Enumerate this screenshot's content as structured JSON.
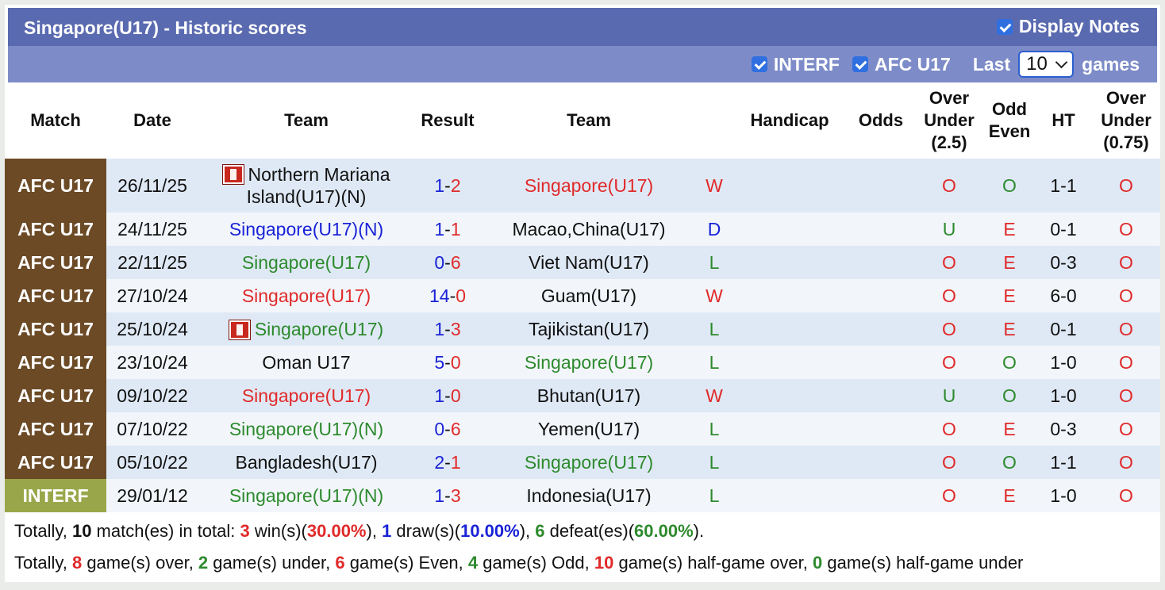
{
  "header": {
    "title": "Singapore(U17) - Historic scores",
    "display_notes_label": "Display Notes",
    "display_notes_checked": true
  },
  "filters": {
    "interf_label": "INTERF",
    "afc_label": "AFC U17",
    "last_label": "Last",
    "last_value": "10",
    "games_label": "games"
  },
  "columns": [
    "Match",
    "Date",
    "Team",
    "Result",
    "Team",
    "",
    "Handicap",
    "Odds",
    "Over\nUnder\n(2.5)",
    "Odd\nEven",
    "HT",
    "Over\nUnder\n(0.75)"
  ],
  "rows": [
    {
      "match": "AFC U17",
      "date": "26/11/25",
      "home": "Northern Mariana Island(U17)(N)",
      "home_color": "black",
      "home_flag": true,
      "score_l": "1",
      "score_r": "2",
      "away": "Singapore(U17)",
      "away_color": "red",
      "wld": "W",
      "wld_color": "red",
      "handicap": "",
      "odds": "",
      "ou": "O",
      "oe": "O",
      "ht": "1-1",
      "ou2": "O"
    },
    {
      "match": "AFC U17",
      "date": "24/11/25",
      "home": "Singapore(U17)(N)",
      "home_color": "blue",
      "home_flag": false,
      "score_l": "1",
      "score_r": "1",
      "away": "Macao,China(U17)",
      "away_color": "black",
      "wld": "D",
      "wld_color": "blue",
      "handicap": "",
      "odds": "",
      "ou": "U",
      "oe": "E",
      "ht": "0-1",
      "ou2": "O"
    },
    {
      "match": "AFC U17",
      "date": "22/11/25",
      "home": "Singapore(U17)",
      "home_color": "green",
      "home_flag": false,
      "score_l": "0",
      "score_r": "6",
      "away": "Viet Nam(U17)",
      "away_color": "black",
      "wld": "L",
      "wld_color": "green",
      "handicap": "",
      "odds": "",
      "ou": "O",
      "oe": "E",
      "ht": "0-3",
      "ou2": "O"
    },
    {
      "match": "AFC U17",
      "date": "27/10/24",
      "home": "Singapore(U17)",
      "home_color": "red",
      "home_flag": false,
      "score_l": "14",
      "score_r": "0",
      "away": "Guam(U17)",
      "away_color": "black",
      "wld": "W",
      "wld_color": "red",
      "handicap": "",
      "odds": "",
      "ou": "O",
      "oe": "E",
      "ht": "6-0",
      "ou2": "O"
    },
    {
      "match": "AFC U17",
      "date": "25/10/24",
      "home": "Singapore(U17)",
      "home_color": "green",
      "home_flag": true,
      "score_l": "1",
      "score_r": "3",
      "away": "Tajikistan(U17)",
      "away_color": "black",
      "wld": "L",
      "wld_color": "green",
      "handicap": "",
      "odds": "",
      "ou": "O",
      "oe": "E",
      "ht": "0-1",
      "ou2": "O"
    },
    {
      "match": "AFC U17",
      "date": "23/10/24",
      "home": "Oman U17",
      "home_color": "black",
      "home_flag": false,
      "score_l": "5",
      "score_r": "0",
      "away": "Singapore(U17)",
      "away_color": "green",
      "wld": "L",
      "wld_color": "green",
      "handicap": "",
      "odds": "",
      "ou": "O",
      "oe": "O",
      "ht": "1-0",
      "ou2": "O"
    },
    {
      "match": "AFC U17",
      "date": "09/10/22",
      "home": "Singapore(U17)",
      "home_color": "red",
      "home_flag": false,
      "score_l": "1",
      "score_r": "0",
      "away": "Bhutan(U17)",
      "away_color": "black",
      "wld": "W",
      "wld_color": "red",
      "handicap": "",
      "odds": "",
      "ou": "U",
      "oe": "O",
      "ht": "1-0",
      "ou2": "O"
    },
    {
      "match": "AFC U17",
      "date": "07/10/22",
      "home": "Singapore(U17)(N)",
      "home_color": "green",
      "home_flag": false,
      "score_l": "0",
      "score_r": "6",
      "away": "Yemen(U17)",
      "away_color": "black",
      "wld": "L",
      "wld_color": "green",
      "handicap": "",
      "odds": "",
      "ou": "O",
      "oe": "E",
      "ht": "0-3",
      "ou2": "O"
    },
    {
      "match": "AFC U17",
      "date": "05/10/22",
      "home": "Bangladesh(U17)",
      "home_color": "black",
      "home_flag": false,
      "score_l": "2",
      "score_r": "1",
      "away": "Singapore(U17)",
      "away_color": "green",
      "wld": "L",
      "wld_color": "green",
      "handicap": "",
      "odds": "",
      "ou": "O",
      "oe": "O",
      "ht": "1-1",
      "ou2": "O"
    },
    {
      "match": "INTERF",
      "date": "29/01/12",
      "home": "Singapore(U17)(N)",
      "home_color": "green",
      "home_flag": false,
      "score_l": "1",
      "score_r": "3",
      "away": "Indonesia(U17)",
      "away_color": "black",
      "wld": "L",
      "wld_color": "green",
      "handicap": "",
      "odds": "",
      "ou": "O",
      "oe": "E",
      "ht": "1-0",
      "ou2": "O"
    }
  ],
  "summary": {
    "line1": {
      "p1": "Totally, ",
      "matches": "10",
      "p2": " match(es) in total: ",
      "wins": "3",
      "p3": " win(s)(",
      "win_pct": "30.00%",
      "p4": "), ",
      "draws": "1",
      "p5": " draw(s)(",
      "draw_pct": "10.00%",
      "p6": "), ",
      "defeats": "6",
      "p7": " defeat(es)(",
      "defeat_pct": "60.00%",
      "p8": ")."
    },
    "line2": {
      "p1": "Totally, ",
      "over": "8",
      "p2": " game(s) over, ",
      "under": "2",
      "p3": " game(s) under, ",
      "even": "6",
      "p4": " game(s) Even, ",
      "odd": "4",
      "p5": " game(s) Odd, ",
      "hg_over": "10",
      "p6": " game(s) half-game over, ",
      "hg_under": "0",
      "p7": " game(s) half-game under"
    }
  },
  "colors": {
    "title_bar": "#5a6ab0",
    "filter_bar": "#7d8cc8",
    "afc_badge": "#6b4a25",
    "interf_badge": "#99a74a",
    "win": "#e02a2a",
    "draw": "#1a23d6",
    "loss": "#2d8a2d"
  }
}
